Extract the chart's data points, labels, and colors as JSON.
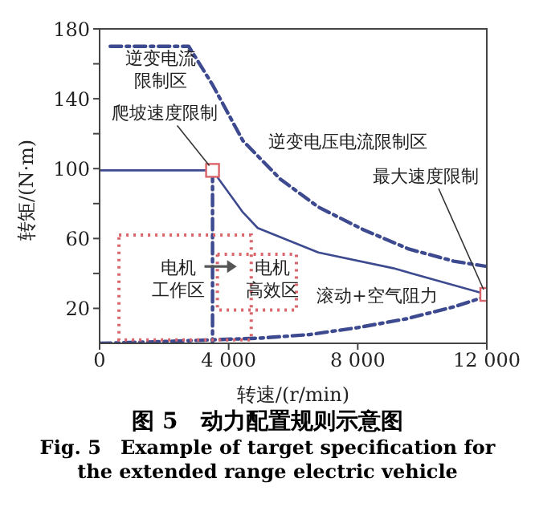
{
  "chart_data": {
    "type": "line",
    "title": "图 5　动力配置规则示意图",
    "subtitle": "Fig. 5　Example of target specification for the extended range electric vehicle",
    "xlabel": "转速/(r/min)",
    "ylabel": "转矩/(N·m)",
    "xlim": [
      0,
      12000
    ],
    "ylim": [
      0,
      180
    ],
    "xticks": [
      0,
      {
        "value": 4000,
        "label": "4 000"
      },
      {
        "value": 8000,
        "label": "8 000"
      },
      {
        "value": 12000,
        "label": "12 000"
      }
    ],
    "yticks": [
      20,
      {
        "value": 40,
        "label": null
      },
      60,
      {
        "value": 80,
        "label": null
      },
      100,
      {
        "value": 120,
        "label": null
      },
      140,
      {
        "value": 160,
        "label": null
      },
      180
    ],
    "series": [
      {
        "color": "#3d4a8f",
        "line_style": "dashed",
        "marker": "none",
        "x": [
          330,
          2760,
          3500,
          4440,
          5600,
          6780,
          8180,
          9580,
          10980,
          12000
        ],
        "values": [
          170,
          170,
          148,
          116,
          94,
          78,
          65,
          54,
          47,
          44
        ]
      },
      {
        "color": "#3d4a8f",
        "line_style": "solid",
        "marker": "none",
        "x": [
          0,
          3500,
          4440,
          4900,
          6780,
          9100,
          12000
        ],
        "values": [
          99,
          99,
          75,
          66,
          52,
          43,
          28
        ]
      },
      {
        "color": "#3d4a8f",
        "line_style": "dashed",
        "marker": "none",
        "x": [
          3500,
          3500
        ],
        "values": [
          99,
          0
        ]
      },
      {
        "color": "#3d4a8f",
        "line_style": "dashed",
        "marker": "none",
        "x": [
          0,
          2000,
          3500,
          5000,
          6500,
          8000,
          9500,
          11000,
          12000
        ],
        "values": [
          0,
          1,
          2,
          3,
          5,
          9,
          14,
          21,
          27
        ]
      },
      {
        "type": "scatter",
        "color": "#d9646a",
        "marker": "square",
        "x": [
          3500,
          12000
        ],
        "values": [
          99,
          28
        ]
      }
    ],
    "annotations": [
      "逆变电流限制区",
      "逆变电压电流限制区",
      {
        "text": "爬坡速度限制",
        "x": 3500,
        "y": 99
      },
      {
        "text": "最大速度限制",
        "x": 12000,
        "y": 28
      },
      "电机工作区",
      "电机高效区",
      "滚动+空气阻力"
    ]
  }
}
